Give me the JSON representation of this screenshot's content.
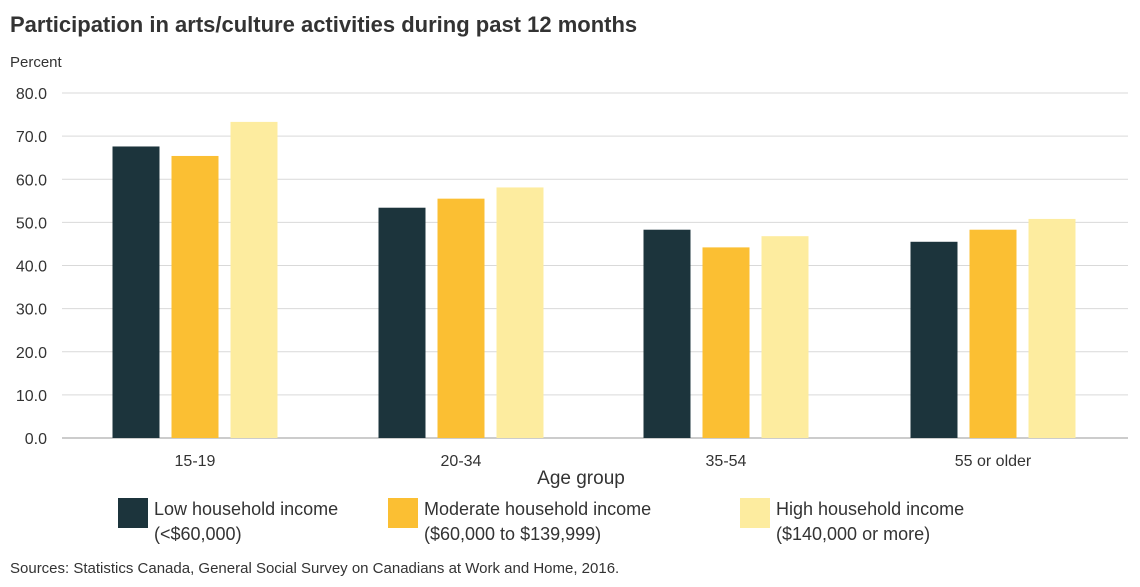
{
  "colors": {
    "low": "#1c343c",
    "moderate": "#fbbf33",
    "high": "#fdec9f",
    "grid": "#d9d9d9",
    "axis": "#999999"
  },
  "chart_data": {
    "type": "bar",
    "title": "Participation in arts/culture activities during past 12 months",
    "ylabel": "Percent",
    "xlabel": "Age group",
    "ylim": [
      0,
      80
    ],
    "yticks": [
      "0.0",
      "10.0",
      "20.0",
      "30.0",
      "40.0",
      "50.0",
      "60.0",
      "70.0",
      "80.0"
    ],
    "categories": [
      "15-19",
      "20-34",
      "35-54",
      "55 or older"
    ],
    "series": [
      {
        "name": "Low household income (<$60,000)",
        "key": "low",
        "values": [
          67.6,
          53.4,
          48.3,
          45.5
        ]
      },
      {
        "name": "Moderate household income ($60,000 to $139,999)",
        "key": "moderate",
        "values": [
          65.4,
          55.5,
          44.2,
          48.3
        ]
      },
      {
        "name": "High household income ($140,000 or more)",
        "key": "high",
        "values": [
          73.3,
          58.1,
          46.8,
          50.8
        ]
      }
    ],
    "grid": true,
    "legend_position": "bottom"
  },
  "legend": [
    {
      "line1": "Low household income",
      "line2": "(<$60,000)"
    },
    {
      "line1": "Moderate household income",
      "line2": "($60,000 to $139,999)"
    },
    {
      "line1": "High household income",
      "line2": "($140,000 or more)"
    }
  ],
  "source": "Sources: Statistics Canada, General Social Survey on Canadians at Work and Home, 2016."
}
